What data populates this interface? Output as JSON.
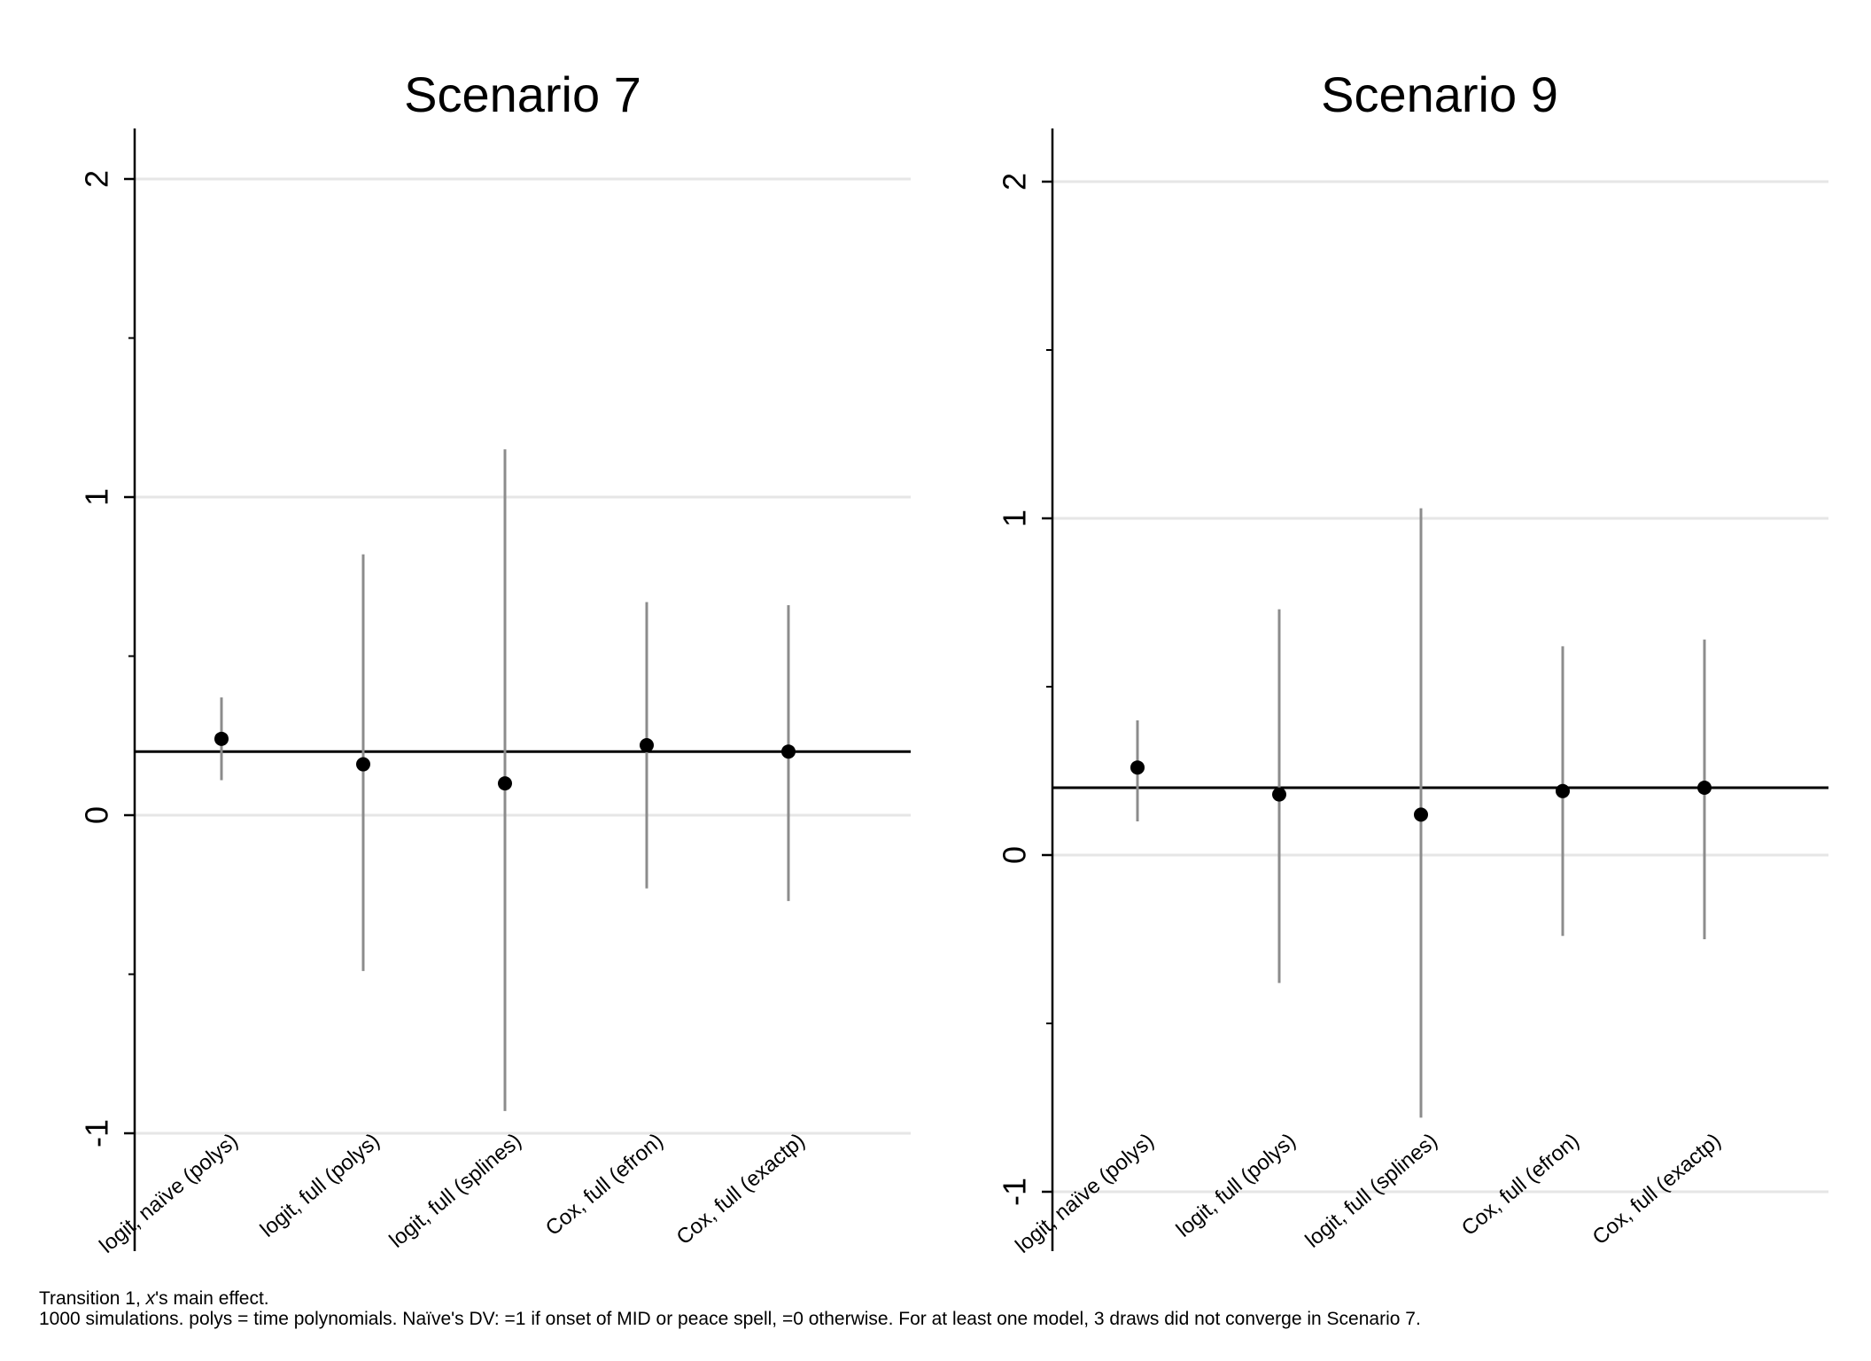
{
  "footnote": {
    "line1_prefix": "Transition 1, ",
    "line1_var": "x",
    "line1_suffix": "'s main effect.",
    "line2": "1000 simulations.  polys = time polynomials.  Naïve's DV: =1 if onset of MID or peace spell, =0 otherwise.  For at least one model, 3 draws did not converge in Scenario 7."
  },
  "chart_data": [
    {
      "type": "scatter",
      "subtype": "point-range",
      "title": "Scenario 7",
      "xlabel": "",
      "ylabel": "",
      "ylim": [
        -1.25,
        2.15
      ],
      "yticks_major": [
        -1,
        0,
        1,
        2
      ],
      "yticks_minor": [
        -0.5,
        0.5,
        1.5
      ],
      "grid": true,
      "reference_line": 0.2,
      "categories": [
        "logit, naïve (polys)",
        "logit, full (polys)",
        "logit, full (splines)",
        "Cox, full (efron)",
        "Cox, full (exactp)"
      ],
      "estimates": [
        0.24,
        0.16,
        0.1,
        0.22,
        0.2
      ],
      "lower": [
        0.11,
        -0.49,
        -0.93,
        -0.23,
        -0.27
      ],
      "upper": [
        0.37,
        0.82,
        1.15,
        0.67,
        0.66
      ]
    },
    {
      "type": "scatter",
      "subtype": "point-range",
      "title": "Scenario 9",
      "xlabel": "",
      "ylabel": "",
      "ylim": [
        -1.18,
        2.15
      ],
      "yticks_major": [
        -1,
        0,
        1,
        2
      ],
      "yticks_minor": [
        -0.5,
        0.5,
        1.5
      ],
      "grid": true,
      "reference_line": 0.2,
      "categories": [
        "logit, naïve (polys)",
        "logit, full (polys)",
        "logit, full (splines)",
        "Cox, full (efron)",
        "Cox, full (exactp)"
      ],
      "estimates": [
        0.26,
        0.18,
        0.12,
        0.19,
        0.2
      ],
      "lower": [
        0.1,
        -0.38,
        -0.78,
        -0.24,
        -0.25
      ],
      "upper": [
        0.4,
        0.73,
        1.03,
        0.62,
        0.64
      ]
    }
  ]
}
